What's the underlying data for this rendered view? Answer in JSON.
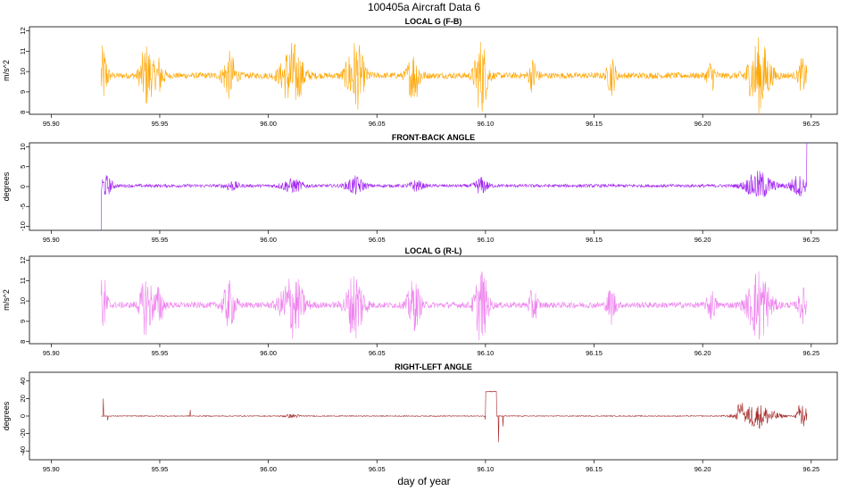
{
  "figure": {
    "title": "100405a   Aircraft Data 6",
    "xlabel": "day of year"
  },
  "chart_data": [
    {
      "type": "line",
      "title": "LOCAL G (F-B)",
      "ylabel": "m/s^2",
      "color": "#FFA500",
      "xlim": [
        95.89,
        96.262
      ],
      "ylim": [
        7.9,
        12.2
      ],
      "xticks": [
        "95.90",
        "95.95",
        "96.00",
        "96.05",
        "96.10",
        "96.15",
        "96.20",
        "96.25"
      ],
      "yticks": [
        "8",
        "9",
        "10",
        "11",
        "12"
      ],
      "baseline": 9.8,
      "noise": 0.15,
      "series": [
        {
          "x_range": [
            95.923,
            96.248
          ],
          "bursts": [
            {
              "x": 95.924,
              "w": 0.002,
              "amp": 1.4
            },
            {
              "x": 95.944,
              "w": 0.003,
              "amp": 1.5
            },
            {
              "x": 95.95,
              "w": 0.002,
              "amp": 0.9
            },
            {
              "x": 95.982,
              "w": 0.003,
              "amp": 1.1
            },
            {
              "x": 96.011,
              "w": 0.005,
              "amp": 1.6
            },
            {
              "x": 96.04,
              "w": 0.004,
              "amp": 1.7
            },
            {
              "x": 96.067,
              "w": 0.003,
              "amp": 1.2
            },
            {
              "x": 96.098,
              "w": 0.003,
              "amp": 1.8
            },
            {
              "x": 96.122,
              "w": 0.002,
              "amp": 0.8
            },
            {
              "x": 96.158,
              "w": 0.002,
              "amp": 0.9
            },
            {
              "x": 96.204,
              "w": 0.002,
              "amp": 0.7
            },
            {
              "x": 96.226,
              "w": 0.005,
              "amp": 1.8
            },
            {
              "x": 96.246,
              "w": 0.002,
              "amp": 0.8
            }
          ]
        }
      ]
    },
    {
      "type": "line",
      "title": "FRONT-BACK ANGLE",
      "ylabel": "degrees",
      "color": "#A020F0",
      "xlim": [
        95.89,
        96.262
      ],
      "ylim": [
        -11,
        11
      ],
      "xticks": [
        "95.90",
        "95.95",
        "96.00",
        "96.05",
        "96.10",
        "96.15",
        "96.20",
        "96.25"
      ],
      "yticks": [
        "-10",
        "-5",
        "0",
        "5",
        "10"
      ],
      "baseline": 0.2,
      "noise": 0.4,
      "series": [
        {
          "x_range": [
            95.923,
            96.248
          ],
          "start_spike": -11,
          "end_spike": 11,
          "bursts": [
            {
              "x": 95.925,
              "w": 0.003,
              "amp": 2.5
            },
            {
              "x": 95.983,
              "w": 0.003,
              "amp": 1.2
            },
            {
              "x": 96.011,
              "w": 0.005,
              "amp": 1.6
            },
            {
              "x": 96.04,
              "w": 0.004,
              "amp": 2.2
            },
            {
              "x": 96.068,
              "w": 0.003,
              "amp": 1.3
            },
            {
              "x": 96.098,
              "w": 0.003,
              "amp": 2.0
            },
            {
              "x": 96.226,
              "w": 0.006,
              "amp": 3.5
            },
            {
              "x": 96.244,
              "w": 0.004,
              "amp": 2.5
            }
          ]
        }
      ]
    },
    {
      "type": "line",
      "title": "LOCAL G (R-L)",
      "ylabel": "m/s^2",
      "color": "#EE82EE",
      "xlim": [
        95.89,
        96.262
      ],
      "ylim": [
        7.9,
        12.2
      ],
      "xticks": [
        "95.90",
        "95.95",
        "96.00",
        "96.05",
        "96.10",
        "96.15",
        "96.20",
        "96.25"
      ],
      "yticks": [
        "8",
        "9",
        "10",
        "11",
        "12"
      ],
      "baseline": 9.8,
      "noise": 0.15,
      "series": [
        {
          "x_range": [
            95.923,
            96.248
          ],
          "bursts": [
            {
              "x": 95.924,
              "w": 0.002,
              "amp": 1.4
            },
            {
              "x": 95.944,
              "w": 0.003,
              "amp": 1.5
            },
            {
              "x": 95.95,
              "w": 0.002,
              "amp": 0.9
            },
            {
              "x": 95.982,
              "w": 0.003,
              "amp": 1.1
            },
            {
              "x": 96.011,
              "w": 0.005,
              "amp": 1.6
            },
            {
              "x": 96.04,
              "w": 0.004,
              "amp": 1.7
            },
            {
              "x": 96.067,
              "w": 0.003,
              "amp": 1.2
            },
            {
              "x": 96.098,
              "w": 0.003,
              "amp": 1.8
            },
            {
              "x": 96.122,
              "w": 0.002,
              "amp": 0.8
            },
            {
              "x": 96.158,
              "w": 0.002,
              "amp": 0.9
            },
            {
              "x": 96.204,
              "w": 0.002,
              "amp": 0.7
            },
            {
              "x": 96.226,
              "w": 0.005,
              "amp": 1.8
            },
            {
              "x": 96.246,
              "w": 0.002,
              "amp": 0.8
            }
          ]
        }
      ]
    },
    {
      "type": "line",
      "title": "RIGHT-LEFT ANGLE",
      "ylabel": "degrees",
      "color": "#A52A2A",
      "xlim": [
        95.89,
        96.262
      ],
      "ylim": [
        -50,
        50
      ],
      "xticks": [
        "95.90",
        "95.95",
        "96.00",
        "96.05",
        "96.10",
        "96.15",
        "96.20",
        "96.25"
      ],
      "yticks": [
        "-40",
        "-20",
        "0",
        "20",
        "40"
      ],
      "baseline": 0,
      "noise": 0.5,
      "series": [
        {
          "x_range": [
            95.923,
            96.248
          ],
          "segments": [
            {
              "x0": 96.1,
              "x1": 96.105,
              "level": 28
            },
            {
              "x0": 96.216,
              "x1": 96.219,
              "level": 8
            }
          ],
          "spikes": [
            {
              "x": 95.924,
              "y": 20
            },
            {
              "x": 95.926,
              "y": -5
            },
            {
              "x": 95.964,
              "y": 7
            },
            {
              "x": 96.1,
              "y": -4
            },
            {
              "x": 96.106,
              "y": -30
            },
            {
              "x": 96.108,
              "y": -12
            }
          ],
          "bursts": [
            {
              "x": 96.011,
              "w": 0.004,
              "amp": 2
            },
            {
              "x": 96.225,
              "w": 0.008,
              "amp": 14
            },
            {
              "x": 96.246,
              "w": 0.002,
              "amp": 25
            }
          ]
        }
      ]
    }
  ]
}
